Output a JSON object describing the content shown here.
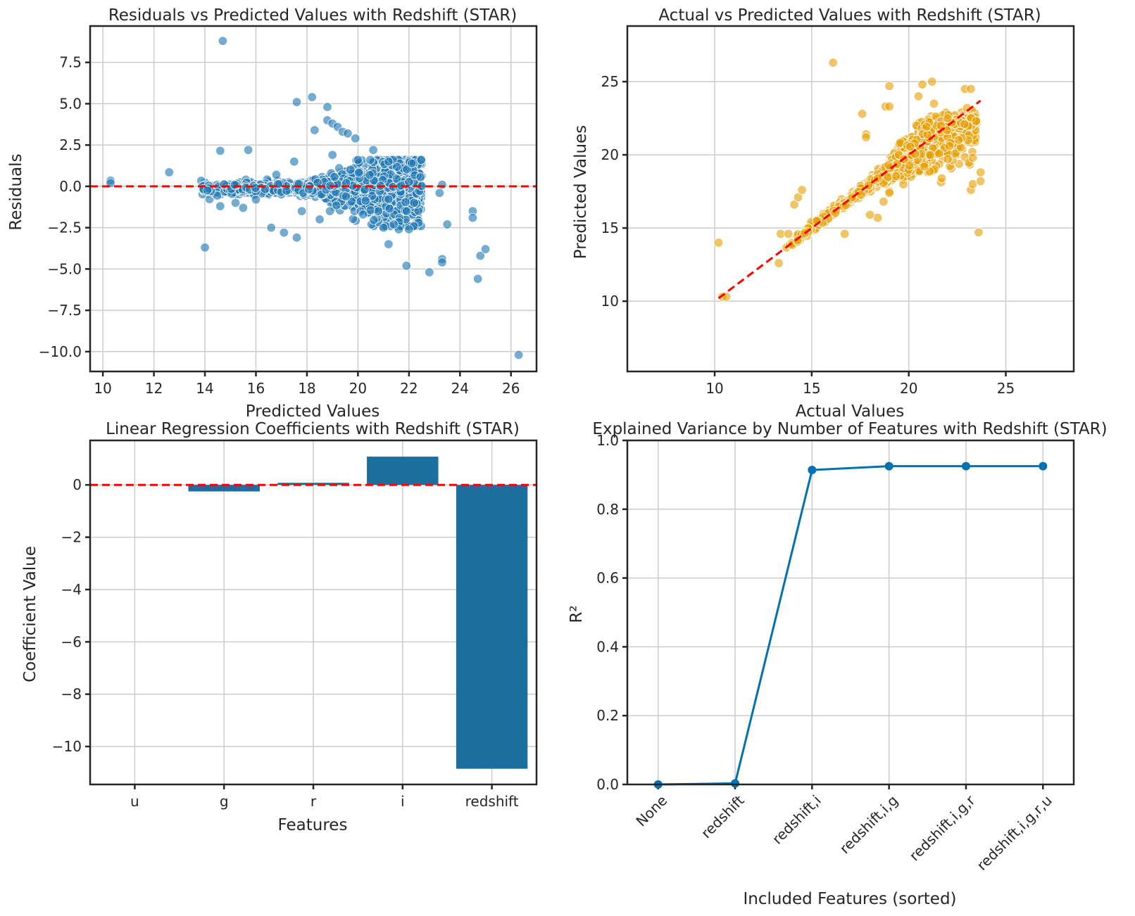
{
  "chart_data": [
    {
      "type": "scatter",
      "title": "Residuals vs Predicted Values with Redshift (STAR)",
      "xlabel": "Predicted Values",
      "ylabel": "Residuals",
      "xlim": [
        9.5,
        27
      ],
      "ylim": [
        -11.2,
        9.7
      ],
      "xticks": [
        10,
        12,
        14,
        16,
        18,
        20,
        22,
        24,
        26
      ],
      "yticks": [
        -10.0,
        -7.5,
        -5.0,
        -2.5,
        0.0,
        2.5,
        5.0,
        7.5
      ],
      "ytick_labels": [
        "−10.0",
        "−7.5",
        "−5.0",
        "−2.5",
        "0.0",
        "2.5",
        "5.0",
        "7.5"
      ],
      "reference_line_y": 0,
      "color": "#1f77b4",
      "reference_color": "#ff0000",
      "outliers": [
        [
          10.3,
          0.35
        ],
        [
          10.3,
          0.2
        ],
        [
          12.6,
          0.85
        ],
        [
          14.0,
          -3.7
        ],
        [
          14.6,
          2.15
        ],
        [
          14.7,
          8.8
        ],
        [
          15.7,
          2.2
        ],
        [
          16.6,
          -2.5
        ],
        [
          17.1,
          -2.8
        ],
        [
          17.6,
          -3.1
        ],
        [
          17.6,
          5.1
        ],
        [
          18.2,
          5.4
        ],
        [
          18.3,
          3.4
        ],
        [
          18.8,
          4.8
        ],
        [
          18.8,
          4.0
        ],
        [
          19.0,
          3.8
        ],
        [
          19.2,
          3.6
        ],
        [
          19.4,
          3.3
        ],
        [
          19.6,
          3.2
        ],
        [
          19.9,
          2.9
        ],
        [
          20.6,
          2.2
        ],
        [
          21.0,
          -2.5
        ],
        [
          21.2,
          -3.5
        ],
        [
          21.9,
          -4.8
        ],
        [
          22.8,
          -5.2
        ],
        [
          23.2,
          -0.4
        ],
        [
          23.3,
          -4.4
        ],
        [
          23.3,
          -4.6
        ],
        [
          23.5,
          -2.3
        ],
        [
          24.5,
          -1.5
        ],
        [
          24.5,
          -1.9
        ],
        [
          24.7,
          -5.6
        ],
        [
          24.8,
          -4.2
        ],
        [
          25.0,
          -3.8
        ],
        [
          26.3,
          -10.2
        ],
        [
          23.3,
          0.1
        ],
        [
          17.5,
          1.5
        ],
        [
          18.5,
          -2.0
        ],
        [
          19.0,
          1.9
        ],
        [
          20.0,
          1.6
        ],
        [
          21.2,
          1.5
        ],
        [
          21.6,
          -2.6
        ],
        [
          22.0,
          -2.6
        ],
        [
          16.8,
          0.7
        ],
        [
          14.6,
          -1.2
        ],
        [
          15.5,
          -1.3
        ],
        [
          16.0,
          -0.8
        ],
        [
          17.8,
          -1.5
        ],
        [
          18.9,
          -1.5
        ],
        [
          20.2,
          -1.7
        ],
        [
          20.8,
          -1.5
        ],
        [
          21.4,
          -2.3
        ],
        [
          22.2,
          -1.0
        ],
        [
          15.2,
          -1.0
        ]
      ],
      "band": {
        "x_min": 13.8,
        "x_max": 22.5,
        "note": "dense cloud of points around y = 0"
      }
    },
    {
      "type": "scatter",
      "title": "Actual vs Predicted Values with Redshift (STAR)",
      "xlabel": "Actual Values",
      "ylabel": "Predicted Values",
      "xlim": [
        5.5,
        28.5
      ],
      "ylim": [
        5.2,
        28.8
      ],
      "xticks": [
        10,
        15,
        20,
        25
      ],
      "yticks": [
        10,
        15,
        20,
        25
      ],
      "identity_line": [
        [
          10.2,
          10.2
        ],
        [
          23.7,
          23.7
        ]
      ],
      "color": "#e69f00",
      "reference_color": "#ff0000",
      "outliers": [
        [
          10.2,
          14.0
        ],
        [
          10.4,
          10.3
        ],
        [
          10.6,
          10.3
        ],
        [
          13.3,
          12.6
        ],
        [
          13.4,
          14.6
        ],
        [
          13.8,
          14.6
        ],
        [
          14.1,
          16.6
        ],
        [
          14.3,
          17.1
        ],
        [
          14.5,
          17.6
        ],
        [
          16.1,
          26.3
        ],
        [
          16.7,
          14.6
        ],
        [
          17.6,
          22.8
        ],
        [
          17.8,
          21.4
        ],
        [
          17.8,
          21.2
        ],
        [
          18.4,
          15.7
        ],
        [
          18.0,
          15.9
        ],
        [
          18.8,
          23.3
        ],
        [
          19.0,
          24.7
        ],
        [
          19.0,
          23.3
        ],
        [
          20.7,
          24.8
        ],
        [
          21.2,
          25.0
        ],
        [
          21.3,
          23.5
        ],
        [
          22.0,
          22.5
        ],
        [
          22.1,
          20.6
        ],
        [
          22.9,
          24.5
        ],
        [
          23.2,
          24.5
        ],
        [
          23.0,
          23.2
        ],
        [
          23.2,
          17.6
        ],
        [
          23.3,
          19.8
        ],
        [
          23.3,
          18.0
        ],
        [
          23.6,
          14.7
        ],
        [
          23.7,
          18.8
        ],
        [
          23.7,
          18.2
        ],
        [
          21.7,
          18.4
        ],
        [
          20.8,
          19.2
        ],
        [
          19.0,
          17.4
        ],
        [
          18.7,
          16.8
        ],
        [
          20.5,
          24.0
        ]
      ],
      "band": {
        "x_min": 13.5,
        "x_max": 23.5,
        "note": "dense cloud along the diagonal"
      }
    },
    {
      "type": "bar",
      "title": "Linear Regression Coefficients with Redshift (STAR)",
      "xlabel": "Features",
      "ylabel": "Coefficient Value",
      "categories": [
        "u",
        "g",
        "r",
        "i",
        "redshift"
      ],
      "values": [
        0.0,
        -0.25,
        0.08,
        1.08,
        -10.85
      ],
      "ylim": [
        -11.45,
        1.7
      ],
      "yticks": [
        -10,
        -8,
        -6,
        -4,
        -2,
        0
      ],
      "ytick_labels": [
        "−10",
        "−8",
        "−6",
        "−4",
        "−2",
        "0"
      ],
      "reference_line_y": 0,
      "color": "#1a6f9f",
      "reference_color": "#ff0000"
    },
    {
      "type": "line",
      "title": "Explained Variance by Number of Features with Redshift (STAR)",
      "xlabel": "Included Features (sorted)",
      "ylabel": "R²",
      "categories": [
        "None",
        "redshift",
        "redshift,i",
        "redshift,i,g",
        "redshift,i,g,r",
        "redshift,i,g,r,u"
      ],
      "values": [
        0.0,
        0.003,
        0.914,
        0.925,
        0.925,
        0.925
      ],
      "ylim": [
        0.0,
        1.0
      ],
      "yticks": [
        0.0,
        0.2,
        0.4,
        0.6,
        0.8,
        1.0
      ],
      "ytick_labels": [
        "0.0",
        "0.2",
        "0.4",
        "0.6",
        "0.8",
        "1.0"
      ],
      "color": "#0072b2"
    }
  ]
}
